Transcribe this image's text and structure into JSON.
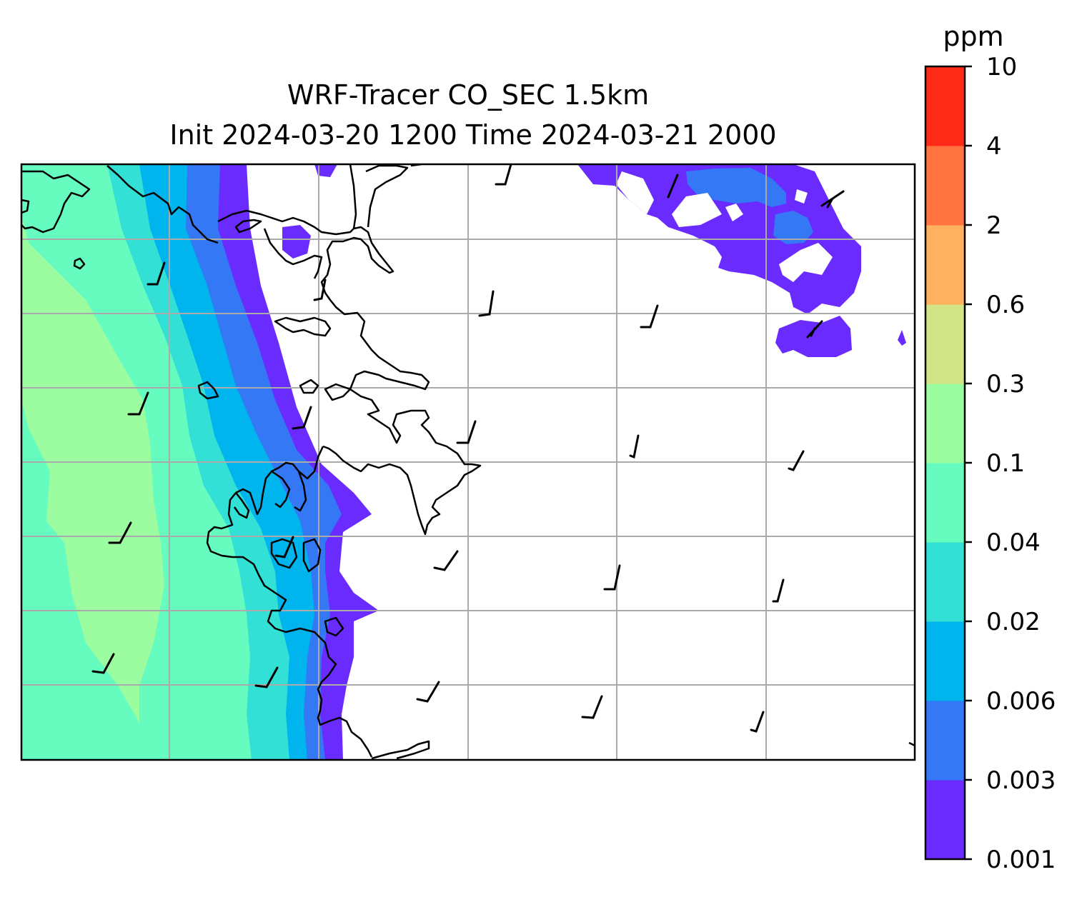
{
  "title": {
    "line1": "WRF-Tracer CO_SEC 1.5km",
    "line2": "Init 2024-03-20 1200 Time 2024-03-21 2000"
  },
  "colorbar": {
    "unit_label": "ppm",
    "levels": [
      "0.001",
      "0.003",
      "0.006",
      "0.02",
      "0.04",
      "0.1",
      "0.3",
      "0.6",
      "2",
      "4",
      "10"
    ],
    "colors": [
      "#6a2bff",
      "#3478f6",
      "#00b4ee",
      "#33e0d6",
      "#66fcbf",
      "#9bfd9f",
      "#d2e486",
      "#ffb160",
      "#ff7440",
      "#ff2a18"
    ]
  },
  "map": {
    "grid": "on",
    "coastline_color": "#000000",
    "grid_color": "#aaaaaa",
    "wind_barb_color": "#000000"
  }
}
